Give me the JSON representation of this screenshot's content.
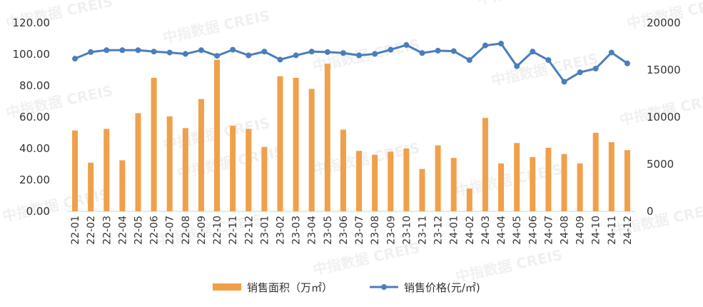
{
  "chart_data": {
    "type": "bar+line",
    "categories": [
      "22-01",
      "22-02",
      "22-03",
      "22-04",
      "22-05",
      "22-06",
      "22-07",
      "22-08",
      "22-09",
      "22-10",
      "22-11",
      "22-12",
      "23-01",
      "23-02",
      "23-03",
      "23-04",
      "23-05",
      "23-06",
      "23-07",
      "23-08",
      "23-09",
      "23-10",
      "23-11",
      "23-12",
      "24-01",
      "24-02",
      "24-03",
      "24-04",
      "24-05",
      "24-06",
      "24-07",
      "24-08",
      "24-09",
      "24-10",
      "24-11",
      "24-12"
    ],
    "series": [
      {
        "name": "销售面积（万㎡）",
        "type": "bar",
        "axis": "left",
        "color": "#F0A04B",
        "values": [
          51.5,
          31,
          52.5,
          32.5,
          62.5,
          85,
          60.5,
          53,
          71.5,
          96.5,
          54.5,
          52.5,
          41,
          86,
          85,
          78,
          94,
          52,
          38.5,
          36,
          38,
          40,
          27,
          42,
          34,
          14.5,
          59.5,
          30.5,
          43.5,
          34.5,
          40.5,
          36.5,
          30.5,
          50,
          44,
          39
        ]
      },
      {
        "name": "销售价格(元/㎡)",
        "type": "line",
        "axis": "right",
        "color": "#4A7EBB",
        "values": [
          16200,
          16900,
          17100,
          17100,
          17100,
          16950,
          16850,
          16700,
          17100,
          16500,
          17150,
          16550,
          16950,
          16100,
          16550,
          16950,
          16900,
          16800,
          16550,
          16700,
          17150,
          17650,
          16800,
          17050,
          17000,
          16050,
          17600,
          17800,
          15400,
          16950,
          16050,
          13750,
          14750,
          15150,
          16850,
          15700
        ]
      }
    ],
    "y_left": {
      "ticks": [
        "0.00",
        "20.00",
        "40.00",
        "60.00",
        "80.00",
        "100.00",
        "120.00"
      ],
      "ylim": [
        0,
        120
      ]
    },
    "y_right": {
      "ticks": [
        "0",
        "5000",
        "10000",
        "15000",
        "20000"
      ],
      "ylim": [
        0,
        20000
      ]
    },
    "legend": {
      "placement": "bottom-center"
    },
    "watermark": "中指数据 CREIS"
  }
}
